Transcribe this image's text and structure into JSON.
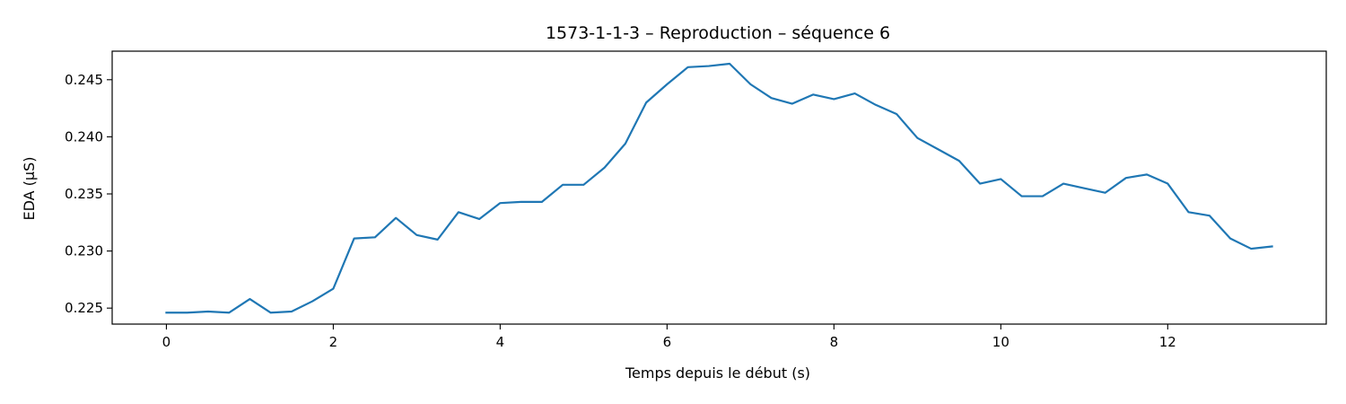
{
  "chart_data": {
    "type": "line",
    "title": "1573-1-1-3 – Reproduction – séquence 6",
    "xlabel": "Temps depuis le début (s)",
    "ylabel": "EDA (µS)",
    "xlim": [
      -0.65,
      13.9
    ],
    "ylim": [
      0.2236,
      0.2475
    ],
    "x_ticks": [
      0,
      2,
      4,
      6,
      8,
      10,
      12
    ],
    "x_tick_labels": [
      "0",
      "2",
      "4",
      "6",
      "8",
      "10",
      "12"
    ],
    "y_ticks": [
      0.225,
      0.23,
      0.235,
      0.24,
      0.245
    ],
    "y_tick_labels": [
      "0.225",
      "0.230",
      "0.235",
      "0.240",
      "0.245"
    ],
    "grid": false,
    "series": [
      {
        "color": "#1f77b4",
        "x": [
          0,
          0.25,
          0.5,
          0.75,
          1.0,
          1.25,
          1.5,
          1.75,
          2.0,
          2.25,
          2.5,
          2.75,
          3.0,
          3.25,
          3.5,
          3.75,
          4.0,
          4.25,
          4.5,
          4.75,
          5.0,
          5.25,
          5.5,
          5.75,
          6.0,
          6.25,
          6.5,
          6.75,
          7.0,
          7.25,
          7.5,
          7.75,
          8.0,
          8.25,
          8.5,
          8.75,
          9.0,
          9.25,
          9.5,
          9.75,
          10.0,
          10.25,
          10.5,
          10.75,
          11.0,
          11.25,
          11.5,
          11.75,
          12.0,
          12.25,
          12.5,
          12.75,
          13.0,
          13.25
        ],
        "y": [
          0.2246,
          0.2246,
          0.2247,
          0.2246,
          0.2258,
          0.2246,
          0.2247,
          0.2256,
          0.2267,
          0.2311,
          0.2312,
          0.2329,
          0.2314,
          0.231,
          0.2334,
          0.2328,
          0.2342,
          0.2343,
          0.2343,
          0.2358,
          0.2358,
          0.2373,
          0.2394,
          0.243,
          0.2446,
          0.2461,
          0.2462,
          0.2464,
          0.2446,
          0.2434,
          0.2429,
          0.2437,
          0.2433,
          0.2438,
          0.2428,
          0.242,
          0.2399,
          0.2389,
          0.2379,
          0.2359,
          0.2363,
          0.2348,
          0.2348,
          0.2359,
          0.2355,
          0.2351,
          0.2364,
          0.2367,
          0.2359,
          0.2334,
          0.2331,
          0.2311,
          0.2302,
          0.2304
        ]
      }
    ]
  }
}
